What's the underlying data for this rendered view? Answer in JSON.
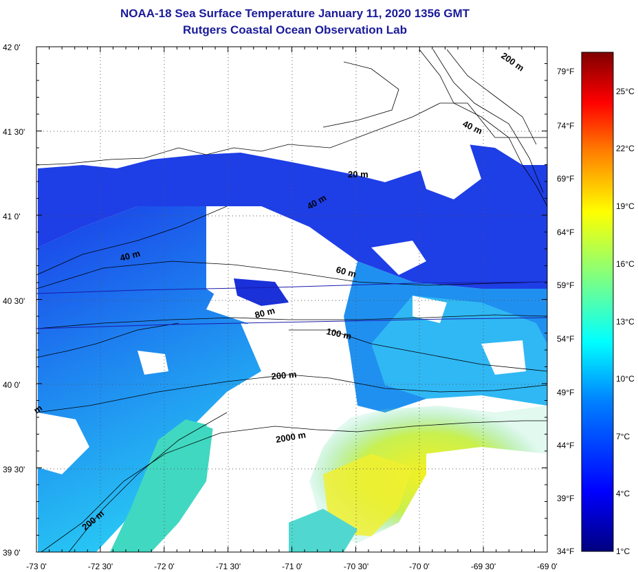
{
  "title": {
    "line1": "NOAA-18 Sea Surface Temperature January 11, 2020 1356 GMT",
    "line2": "Rutgers Coastal Ocean Observation Lab"
  },
  "map": {
    "lat_labels": [
      "42 0'",
      "41 30'",
      "41 0'",
      "40 30'",
      "40 0'",
      "39 30'",
      "39 0'"
    ],
    "lon_labels": [
      "-73 0'",
      "-72 30'",
      "-72 0'",
      "-71 30'",
      "-71 0'",
      "-70 30'",
      "-70 0'",
      "-69 30'",
      "-69 0'"
    ],
    "fahrenheit_labels": [
      "79°F",
      "74°F",
      "69°F",
      "64°F",
      "59°F",
      "54°F",
      "49°F",
      "44°F",
      "39°F",
      "34°F"
    ],
    "contours": [
      {
        "label": "20 m"
      },
      {
        "label": "40 m"
      },
      {
        "label": "40 m"
      },
      {
        "label": "40 m"
      },
      {
        "label": "60 m"
      },
      {
        "label": "80 m"
      },
      {
        "label": "100 m"
      },
      {
        "label": "200 m"
      },
      {
        "label": "200 m"
      },
      {
        "label": "2000 m"
      },
      {
        "label": "200 m"
      },
      {
        "label": "m"
      }
    ]
  },
  "colorbar": {
    "celsius_labels": [
      "25°C",
      "22°C",
      "19°C",
      "16°C",
      "13°C",
      "10°C",
      "7°C",
      "4°C",
      "1°C"
    ],
    "colors": {
      "top": "#7f0000",
      "red": "#ff2000",
      "orange": "#ff9000",
      "yellow": "#ffff10",
      "green": "#90ff60",
      "cyan": "#10f0ff",
      "blue": "#1060ff",
      "navy": "#0000a0"
    }
  },
  "colors": {
    "title": "#1a1a9a",
    "land": "#ffffff",
    "cloud": "#ffffff"
  }
}
